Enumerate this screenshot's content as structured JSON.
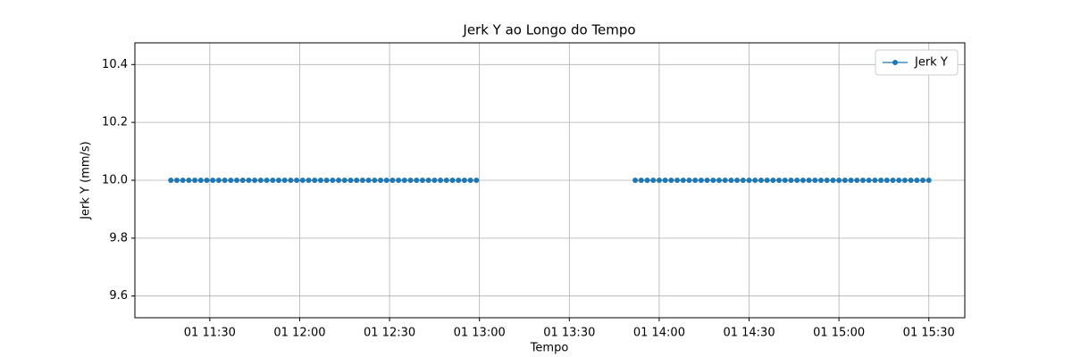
{
  "chart_data": {
    "type": "line",
    "title": "Jerk Y ao Longo do Tempo",
    "x_label": "Tempo",
    "y_label": "Jerk Y (mm/s)",
    "xlim": [
      "01 11:05",
      "01 15:42"
    ],
    "xticks": [
      "01 11:30",
      "01 12:00",
      "01 12:30",
      "01 13:00",
      "01 13:30",
      "01 14:00",
      "01 14:30",
      "01 15:00",
      "01 15:30"
    ],
    "ylim": [
      9.525,
      10.475
    ],
    "yticks": [
      9.6,
      9.8,
      {
        "value": 10,
        "label": "10.0"
      },
      10.2,
      10.4
    ],
    "grid": true,
    "legend": "upper right",
    "series": [
      {
        "name": "Jerk Y",
        "color": "#1f77b4",
        "x": [
          "01 11:17",
          "01 11:19",
          "01 11:21",
          "01 11:23",
          "01 11:25",
          "01 11:27",
          "01 11:29",
          "01 11:31",
          "01 11:33",
          "01 11:35",
          "01 11:37",
          "01 11:39",
          "01 11:41",
          "01 11:43",
          "01 11:45",
          "01 11:47",
          "01 11:49",
          "01 11:51",
          "01 11:53",
          "01 11:55",
          "01 11:57",
          "01 11:59",
          "01 12:01",
          "01 12:03",
          "01 12:05",
          "01 12:07",
          "01 12:09",
          "01 12:11",
          "01 12:13",
          "01 12:15",
          "01 12:17",
          "01 12:19",
          "01 12:21",
          "01 12:23",
          "01 12:25",
          "01 12:27",
          "01 12:29",
          "01 12:31",
          "01 12:33",
          "01 12:35",
          "01 12:37",
          "01 12:39",
          "01 12:41",
          "01 12:43",
          "01 12:45",
          "01 12:47",
          "01 12:49",
          "01 12:51",
          "01 12:53",
          "01 12:55",
          "01 12:57",
          "01 12:59",
          "01 13:25",
          "01 13:52",
          "01 13:54",
          "01 13:56",
          "01 13:58",
          "01 14:00",
          "01 14:02",
          "01 14:04",
          "01 14:06",
          "01 14:08",
          "01 14:10",
          "01 14:12",
          "01 14:14",
          "01 14:16",
          "01 14:18",
          "01 14:20",
          "01 14:22",
          "01 14:24",
          "01 14:26",
          "01 14:28",
          "01 14:30",
          "01 14:32",
          "01 14:34",
          "01 14:36",
          "01 14:38",
          "01 14:40",
          "01 14:42",
          "01 14:44",
          "01 14:46",
          "01 14:48",
          "01 14:50",
          "01 14:52",
          "01 14:54",
          "01 14:56",
          "01 14:58",
          "01 15:00",
          "01 15:02",
          "01 15:04",
          "01 15:06",
          "01 15:08",
          "01 15:10",
          "01 15:12",
          "01 15:14",
          "01 15:16",
          "01 15:18",
          "01 15:20",
          "01 15:22",
          "01 15:24",
          "01 15:26",
          "01 15:28",
          "01 15:30"
        ],
        "values": [
          10,
          10,
          10,
          10,
          10,
          10,
          10,
          10,
          10,
          10,
          10,
          10,
          10,
          10,
          10,
          10,
          10,
          10,
          10,
          10,
          10,
          10,
          10,
          10,
          10,
          10,
          10,
          10,
          10,
          10,
          10,
          10,
          10,
          10,
          10,
          10,
          10,
          10,
          10,
          10,
          10,
          10,
          10,
          10,
          10,
          10,
          10,
          10,
          10,
          10,
          10,
          10,
          null,
          10,
          10,
          10,
          10,
          10,
          10,
          10,
          10,
          10,
          10,
          10,
          10,
          10,
          10,
          10,
          10,
          10,
          10,
          10,
          10,
          10,
          10,
          10,
          10,
          10,
          10,
          10,
          10,
          10,
          10,
          10,
          10,
          10,
          10,
          10,
          10,
          10,
          10,
          10,
          10,
          10,
          10,
          10,
          10,
          10,
          10,
          10,
          10,
          10,
          10
        ]
      }
    ]
  }
}
